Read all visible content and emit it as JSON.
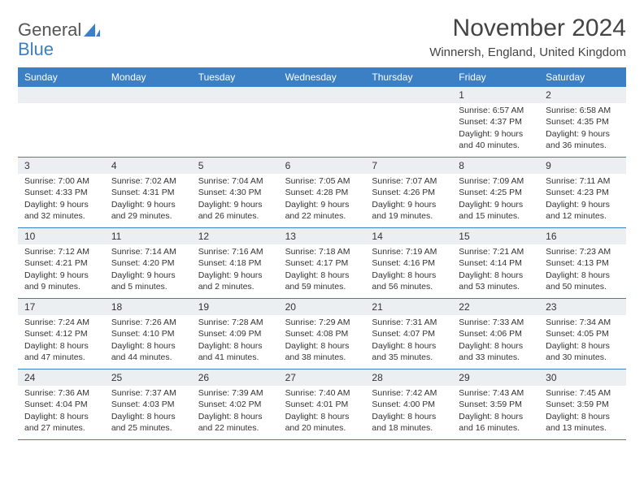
{
  "logo": {
    "text1": "General",
    "text2": "Blue"
  },
  "title": "November 2024",
  "location": "Winnersh, England, United Kingdom",
  "colors": {
    "header_bg": "#3b7fc4",
    "header_text": "#ffffff",
    "daynum_bg": "#eceff2",
    "border": "#3b7fc4",
    "text": "#333333",
    "background": "#ffffff"
  },
  "typography": {
    "title_fontsize": 30,
    "location_fontsize": 15,
    "header_fontsize": 12,
    "daynum_fontsize": 12,
    "body_fontsize": 10.5
  },
  "day_names": [
    "Sunday",
    "Monday",
    "Tuesday",
    "Wednesday",
    "Thursday",
    "Friday",
    "Saturday"
  ],
  "weeks": [
    [
      null,
      null,
      null,
      null,
      null,
      {
        "n": "1",
        "sunrise": "Sunrise: 6:57 AM",
        "sunset": "Sunset: 4:37 PM",
        "daylight": "Daylight: 9 hours and 40 minutes."
      },
      {
        "n": "2",
        "sunrise": "Sunrise: 6:58 AM",
        "sunset": "Sunset: 4:35 PM",
        "daylight": "Daylight: 9 hours and 36 minutes."
      }
    ],
    [
      {
        "n": "3",
        "sunrise": "Sunrise: 7:00 AM",
        "sunset": "Sunset: 4:33 PM",
        "daylight": "Daylight: 9 hours and 32 minutes."
      },
      {
        "n": "4",
        "sunrise": "Sunrise: 7:02 AM",
        "sunset": "Sunset: 4:31 PM",
        "daylight": "Daylight: 9 hours and 29 minutes."
      },
      {
        "n": "5",
        "sunrise": "Sunrise: 7:04 AM",
        "sunset": "Sunset: 4:30 PM",
        "daylight": "Daylight: 9 hours and 26 minutes."
      },
      {
        "n": "6",
        "sunrise": "Sunrise: 7:05 AM",
        "sunset": "Sunset: 4:28 PM",
        "daylight": "Daylight: 9 hours and 22 minutes."
      },
      {
        "n": "7",
        "sunrise": "Sunrise: 7:07 AM",
        "sunset": "Sunset: 4:26 PM",
        "daylight": "Daylight: 9 hours and 19 minutes."
      },
      {
        "n": "8",
        "sunrise": "Sunrise: 7:09 AM",
        "sunset": "Sunset: 4:25 PM",
        "daylight": "Daylight: 9 hours and 15 minutes."
      },
      {
        "n": "9",
        "sunrise": "Sunrise: 7:11 AM",
        "sunset": "Sunset: 4:23 PM",
        "daylight": "Daylight: 9 hours and 12 minutes."
      }
    ],
    [
      {
        "n": "10",
        "sunrise": "Sunrise: 7:12 AM",
        "sunset": "Sunset: 4:21 PM",
        "daylight": "Daylight: 9 hours and 9 minutes."
      },
      {
        "n": "11",
        "sunrise": "Sunrise: 7:14 AM",
        "sunset": "Sunset: 4:20 PM",
        "daylight": "Daylight: 9 hours and 5 minutes."
      },
      {
        "n": "12",
        "sunrise": "Sunrise: 7:16 AM",
        "sunset": "Sunset: 4:18 PM",
        "daylight": "Daylight: 9 hours and 2 minutes."
      },
      {
        "n": "13",
        "sunrise": "Sunrise: 7:18 AM",
        "sunset": "Sunset: 4:17 PM",
        "daylight": "Daylight: 8 hours and 59 minutes."
      },
      {
        "n": "14",
        "sunrise": "Sunrise: 7:19 AM",
        "sunset": "Sunset: 4:16 PM",
        "daylight": "Daylight: 8 hours and 56 minutes."
      },
      {
        "n": "15",
        "sunrise": "Sunrise: 7:21 AM",
        "sunset": "Sunset: 4:14 PM",
        "daylight": "Daylight: 8 hours and 53 minutes."
      },
      {
        "n": "16",
        "sunrise": "Sunrise: 7:23 AM",
        "sunset": "Sunset: 4:13 PM",
        "daylight": "Daylight: 8 hours and 50 minutes."
      }
    ],
    [
      {
        "n": "17",
        "sunrise": "Sunrise: 7:24 AM",
        "sunset": "Sunset: 4:12 PM",
        "daylight": "Daylight: 8 hours and 47 minutes."
      },
      {
        "n": "18",
        "sunrise": "Sunrise: 7:26 AM",
        "sunset": "Sunset: 4:10 PM",
        "daylight": "Daylight: 8 hours and 44 minutes."
      },
      {
        "n": "19",
        "sunrise": "Sunrise: 7:28 AM",
        "sunset": "Sunset: 4:09 PM",
        "daylight": "Daylight: 8 hours and 41 minutes."
      },
      {
        "n": "20",
        "sunrise": "Sunrise: 7:29 AM",
        "sunset": "Sunset: 4:08 PM",
        "daylight": "Daylight: 8 hours and 38 minutes."
      },
      {
        "n": "21",
        "sunrise": "Sunrise: 7:31 AM",
        "sunset": "Sunset: 4:07 PM",
        "daylight": "Daylight: 8 hours and 35 minutes."
      },
      {
        "n": "22",
        "sunrise": "Sunrise: 7:33 AM",
        "sunset": "Sunset: 4:06 PM",
        "daylight": "Daylight: 8 hours and 33 minutes."
      },
      {
        "n": "23",
        "sunrise": "Sunrise: 7:34 AM",
        "sunset": "Sunset: 4:05 PM",
        "daylight": "Daylight: 8 hours and 30 minutes."
      }
    ],
    [
      {
        "n": "24",
        "sunrise": "Sunrise: 7:36 AM",
        "sunset": "Sunset: 4:04 PM",
        "daylight": "Daylight: 8 hours and 27 minutes."
      },
      {
        "n": "25",
        "sunrise": "Sunrise: 7:37 AM",
        "sunset": "Sunset: 4:03 PM",
        "daylight": "Daylight: 8 hours and 25 minutes."
      },
      {
        "n": "26",
        "sunrise": "Sunrise: 7:39 AM",
        "sunset": "Sunset: 4:02 PM",
        "daylight": "Daylight: 8 hours and 22 minutes."
      },
      {
        "n": "27",
        "sunrise": "Sunrise: 7:40 AM",
        "sunset": "Sunset: 4:01 PM",
        "daylight": "Daylight: 8 hours and 20 minutes."
      },
      {
        "n": "28",
        "sunrise": "Sunrise: 7:42 AM",
        "sunset": "Sunset: 4:00 PM",
        "daylight": "Daylight: 8 hours and 18 minutes."
      },
      {
        "n": "29",
        "sunrise": "Sunrise: 7:43 AM",
        "sunset": "Sunset: 3:59 PM",
        "daylight": "Daylight: 8 hours and 16 minutes."
      },
      {
        "n": "30",
        "sunrise": "Sunrise: 7:45 AM",
        "sunset": "Sunset: 3:59 PM",
        "daylight": "Daylight: 8 hours and 13 minutes."
      }
    ]
  ]
}
